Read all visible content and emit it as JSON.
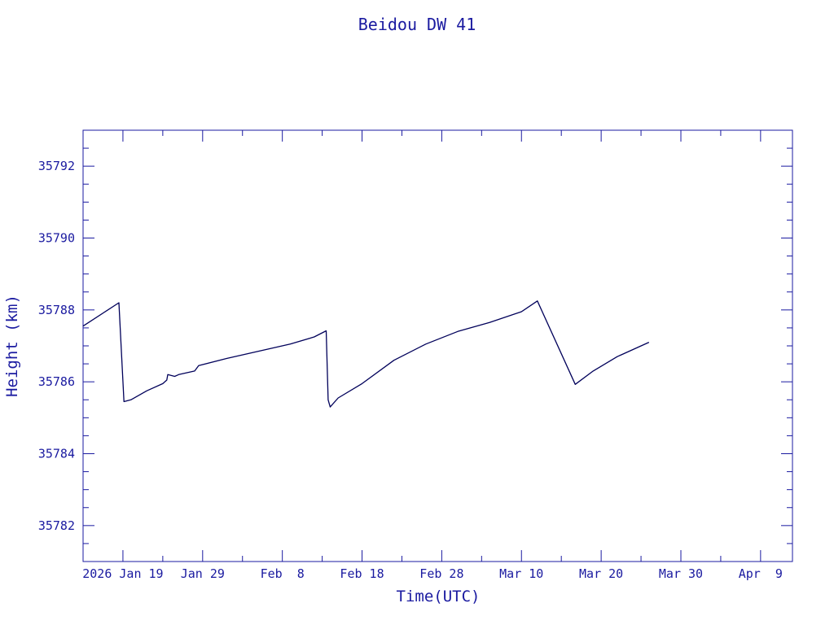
{
  "chart_data": {
    "type": "line",
    "title": "Beidou DW 41",
    "xlabel": "Time(UTC)",
    "ylabel": "Height (km)",
    "xlim": [
      "2026-01-14",
      "2026-04-13"
    ],
    "ylim": [
      35781,
      35793
    ],
    "x_tick_labels": [
      {
        "date": "2026-01-19",
        "label": "2026 Jan 19"
      },
      {
        "date": "2026-01-29",
        "label": "Jan 29"
      },
      {
        "date": "2026-02-08",
        "label": "Feb  8"
      },
      {
        "date": "2026-02-18",
        "label": "Feb 18"
      },
      {
        "date": "2026-02-28",
        "label": "Feb 28"
      },
      {
        "date": "2026-03-10",
        "label": "Mar 10"
      },
      {
        "date": "2026-03-20",
        "label": "Mar 20"
      },
      {
        "date": "2026-03-30",
        "label": "Mar 30"
      },
      {
        "date": "2026-04-09",
        "label": "Apr  9"
      }
    ],
    "x_minor_tick_dates": [
      "2026-01-24",
      "2026-02-03",
      "2026-02-13",
      "2026-02-23",
      "2026-03-05",
      "2026-03-15",
      "2026-03-25",
      "2026-04-04"
    ],
    "y_major_ticks": [
      35782,
      35784,
      35786,
      35788,
      35790,
      35792
    ],
    "y_minor_ticks": [
      35781.5,
      35782.5,
      35783,
      35783.5,
      35784.5,
      35785,
      35785.5,
      35786.5,
      35787,
      35787.5,
      35788.5,
      35789,
      35789.5,
      35790.5,
      35791,
      35791.5,
      35792.5
    ],
    "grid": false,
    "legend": "none",
    "series": [
      {
        "points": [
          [
            "2026-01-14",
            35787.55
          ],
          [
            "2026-01-18 12:00",
            35788.2
          ],
          [
            "2026-01-19 03:00",
            35785.45
          ],
          [
            "2026-01-20",
            35785.5
          ],
          [
            "2026-01-22",
            35785.75
          ],
          [
            "2026-01-24",
            35785.95
          ],
          [
            "2026-01-24 12:00",
            35786.05
          ],
          [
            "2026-01-24 15:00",
            35786.2
          ],
          [
            "2026-01-25 12:00",
            35786.15
          ],
          [
            "2026-01-26",
            35786.2
          ],
          [
            "2026-01-28",
            35786.3
          ],
          [
            "2026-01-28 12:00",
            35786.45
          ],
          [
            "2026-02-01",
            35786.65
          ],
          [
            "2026-02-05",
            35786.85
          ],
          [
            "2026-02-09",
            35787.05
          ],
          [
            "2026-02-12",
            35787.25
          ],
          [
            "2026-02-13 12:00",
            35787.42
          ],
          [
            "2026-02-13 18:00",
            35785.5
          ],
          [
            "2026-02-14",
            35785.3
          ],
          [
            "2026-02-15",
            35785.55
          ],
          [
            "2026-02-18",
            35785.95
          ],
          [
            "2026-02-22",
            35786.6
          ],
          [
            "2026-02-26",
            35787.05
          ],
          [
            "2026-03-02",
            35787.4
          ],
          [
            "2026-03-06",
            35787.65
          ],
          [
            "2026-03-10",
            35787.95
          ],
          [
            "2026-03-12",
            35788.25
          ],
          [
            "2026-03-16 18:00",
            35785.93
          ],
          [
            "2026-03-19",
            35786.3
          ],
          [
            "2026-03-22",
            35786.7
          ],
          [
            "2026-03-26",
            35787.1
          ]
        ]
      }
    ]
  }
}
